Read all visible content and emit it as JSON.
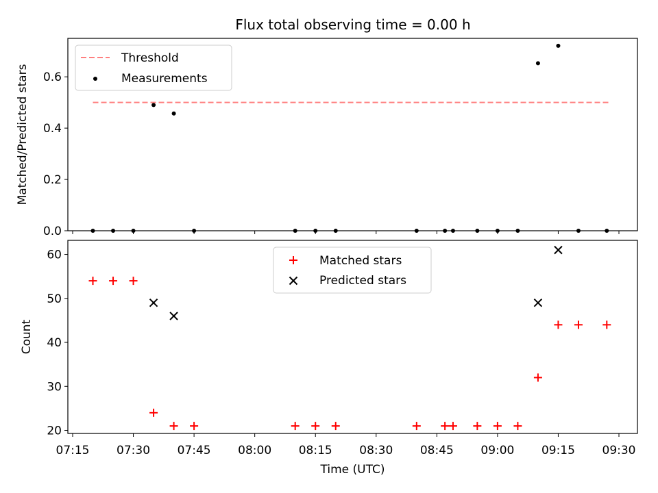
{
  "title": "Flux total observing time = 0.00 h",
  "chart_data": [
    {
      "type": "scatter",
      "ylabel": "Matched/Predicted stars",
      "ylim": [
        0,
        0.75
      ],
      "yticks": [
        0.0,
        0.2,
        0.4,
        0.6
      ],
      "ytick_labels": [
        "0.0",
        "0.2",
        "0.4",
        "0.6"
      ],
      "legend_position": "upper-left",
      "threshold": {
        "name": "Threshold",
        "value": 0.5,
        "x_start": "07:20",
        "x_end": "09:28",
        "color": "#ff7f7f"
      },
      "series": [
        {
          "name": "Measurements",
          "color": "#000000",
          "marker": "dot",
          "points": [
            {
              "x": "07:20",
              "y": 0.0
            },
            {
              "x": "07:25",
              "y": 0.0
            },
            {
              "x": "07:30",
              "y": 0.0
            },
            {
              "x": "07:35",
              "y": 0.49
            },
            {
              "x": "07:40",
              "y": 0.457
            },
            {
              "x": "07:45",
              "y": 0.0
            },
            {
              "x": "08:10",
              "y": 0.0
            },
            {
              "x": "08:15",
              "y": 0.0
            },
            {
              "x": "08:20",
              "y": 0.0
            },
            {
              "x": "08:40",
              "y": 0.0
            },
            {
              "x": "08:47",
              "y": 0.0
            },
            {
              "x": "08:49",
              "y": 0.0
            },
            {
              "x": "08:55",
              "y": 0.0
            },
            {
              "x": "09:00",
              "y": 0.0
            },
            {
              "x": "09:05",
              "y": 0.0
            },
            {
              "x": "09:10",
              "y": 0.653
            },
            {
              "x": "09:15",
              "y": 0.721
            },
            {
              "x": "09:20",
              "y": 0.0
            },
            {
              "x": "09:27",
              "y": 0.0
            }
          ]
        }
      ]
    },
    {
      "type": "scatter",
      "xlabel": "Time (UTC)",
      "ylabel": "Count",
      "ylim": [
        19.3,
        63.2
      ],
      "yticks": [
        20,
        30,
        40,
        50,
        60
      ],
      "ytick_labels": [
        "20",
        "30",
        "40",
        "50",
        "60"
      ],
      "xlim": [
        "07:15",
        "09:30"
      ],
      "xticks": [
        "07:15",
        "07:30",
        "07:45",
        "08:00",
        "08:15",
        "08:30",
        "08:45",
        "09:00",
        "09:15",
        "09:30"
      ],
      "legend_position": "upper-center",
      "series": [
        {
          "name": "Matched stars",
          "color": "#ff0000",
          "marker": "plus",
          "points": [
            {
              "x": "07:20",
              "y": 54
            },
            {
              "x": "07:25",
              "y": 54
            },
            {
              "x": "07:30",
              "y": 54
            },
            {
              "x": "07:35",
              "y": 24
            },
            {
              "x": "07:40",
              "y": 21
            },
            {
              "x": "07:45",
              "y": 21
            },
            {
              "x": "08:10",
              "y": 21
            },
            {
              "x": "08:15",
              "y": 21
            },
            {
              "x": "08:20",
              "y": 21
            },
            {
              "x": "08:40",
              "y": 21
            },
            {
              "x": "08:47",
              "y": 21
            },
            {
              "x": "08:49",
              "y": 21
            },
            {
              "x": "08:55",
              "y": 21
            },
            {
              "x": "09:00",
              "y": 21
            },
            {
              "x": "09:05",
              "y": 21
            },
            {
              "x": "09:10",
              "y": 32
            },
            {
              "x": "09:15",
              "y": 44
            },
            {
              "x": "09:20",
              "y": 44
            },
            {
              "x": "09:27",
              "y": 44
            }
          ]
        },
        {
          "name": "Predicted stars",
          "color": "#000000",
          "marker": "x",
          "points": [
            {
              "x": "07:35",
              "y": 49
            },
            {
              "x": "07:40",
              "y": 46
            },
            {
              "x": "09:10",
              "y": 49
            },
            {
              "x": "09:15",
              "y": 61
            }
          ]
        }
      ]
    }
  ]
}
